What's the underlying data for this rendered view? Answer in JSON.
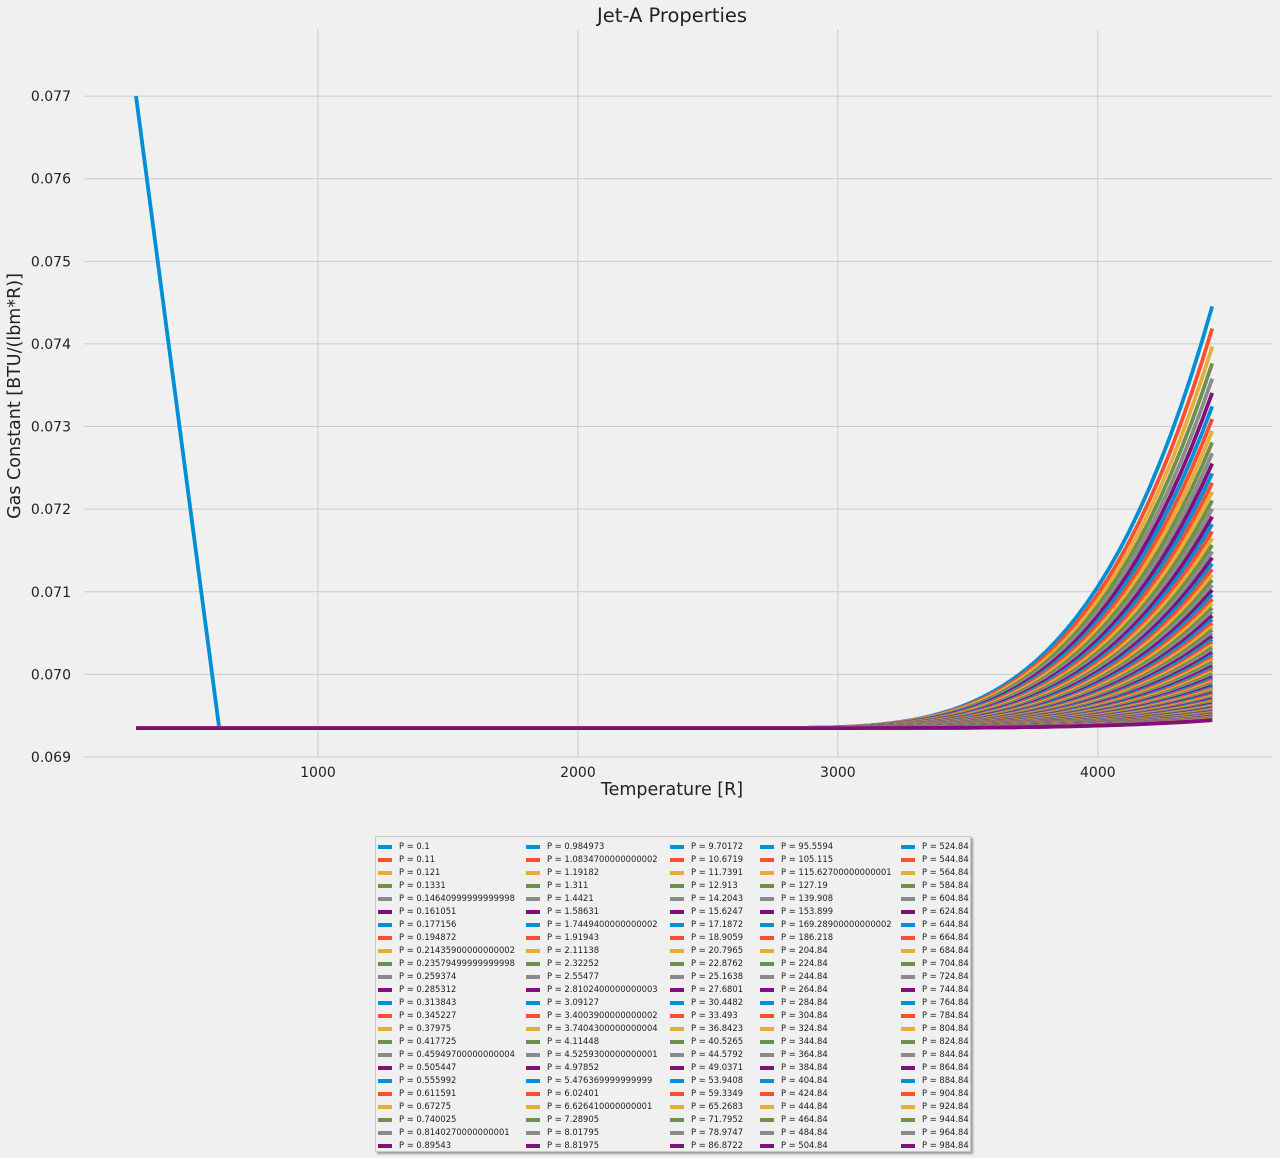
{
  "chart_data": {
    "type": "line",
    "title": "Jet-A Properties",
    "xlabel": "Temperature [R]",
    "ylabel": "Gas Constant [BTU/(lbm*R)]",
    "xlim": [
      100,
      4670
    ],
    "ylim": [
      0.069,
      0.0778
    ],
    "x_ticks": [
      1000,
      2000,
      3000,
      4000
    ],
    "y_ticks": [
      0.069,
      0.07,
      0.071,
      0.072,
      0.073,
      0.074,
      0.075,
      0.076,
      0.077
    ],
    "x_tick_labels": [
      "1000",
      "2000",
      "3000",
      "4000"
    ],
    "y_tick_labels": [
      "0.069",
      "0.070",
      "0.071",
      "0.072",
      "0.073",
      "0.074",
      "0.075",
      "0.076",
      "0.077"
    ],
    "t_start": 300,
    "t_end": 4460,
    "r_base": 0.06935,
    "first_series_spike": {
      "x": [
        300,
        620
      ],
      "y": [
        0.077,
        0.06935
      ]
    },
    "top_curve_end_value": 0.07468,
    "bottom_curve_end_value": 0.06945,
    "legend_location": "below plot, centered",
    "color_cycle": [
      "#008fd5",
      "#fc4f30",
      "#e5ae38",
      "#6d904f",
      "#8b8b8b",
      "#810f7c"
    ],
    "legend_labels": [
      "P = 0.1",
      "P = 0.11",
      "P = 0.121",
      "P = 0.1331",
      "P = 0.14640999999999998",
      "P = 0.161051",
      "P = 0.177156",
      "P = 0.194872",
      "P = 0.21435900000000002",
      "P = 0.23579499999999998",
      "P = 0.259374",
      "P = 0.285312",
      "P = 0.313843",
      "P = 0.345227",
      "P = 0.37975",
      "P = 0.417725",
      "P = 0.45949700000000004",
      "P = 0.505447",
      "P = 0.555992",
      "P = 0.611591",
      "P = 0.67275",
      "P = 0.740025",
      "P = 0.8140270000000001",
      "P = 0.89543",
      "P = 0.984973",
      "P = 1.0834700000000002",
      "P = 1.19182",
      "P = 1.311",
      "P = 1.4421",
      "P = 1.58631",
      "P = 1.7449400000000002",
      "P = 1.91943",
      "P = 2.11138",
      "P = 2.32252",
      "P = 2.55477",
      "P = 2.8102400000000003",
      "P = 3.09127",
      "P = 3.4003900000000002",
      "P = 3.7404300000000004",
      "P = 4.11448",
      "P = 4.5259300000000001",
      "P = 4.97852",
      "P = 5.476369999999999",
      "P = 6.02401",
      "P = 6.626410000000001",
      "P = 7.28905",
      "P = 8.01795",
      "P = 8.81975",
      "P = 9.70172",
      "P = 10.6719",
      "P = 11.7391",
      "P = 12.913",
      "P = 14.2043",
      "P = 15.6247",
      "P = 17.1872",
      "P = 18.9059",
      "P = 20.7965",
      "P = 22.8762",
      "P = 25.1638",
      "P = 27.6801",
      "P = 30.4482",
      "P = 33.493",
      "P = 36.8423",
      "P = 40.5265",
      "P = 44.5792",
      "P = 49.0371",
      "P = 53.9408",
      "P = 59.3349",
      "P = 65.2683",
      "P = 71.7952",
      "P = 78.9747",
      "P = 86.8722",
      "P = 95.5594",
      "P = 105.115",
      "P = 115.62700000000001",
      "P = 127.19",
      "P = 139.908",
      "P = 153.899",
      "P = 169.28900000000002",
      "P = 186.218",
      "P = 204.84",
      "P = 224.84",
      "P = 244.84",
      "P = 264.84",
      "P = 284.84",
      "P = 304.84",
      "P = 324.84",
      "P = 344.84",
      "P = 364.84",
      "P = 384.84",
      "P = 404.84",
      "P = 424.84",
      "P = 444.84",
      "P = 464.84",
      "P = 484.84",
      "P = 504.84",
      "P = 524.84",
      "P = 544.84",
      "P = 564.84",
      "P = 584.84",
      "P = 604.84",
      "P = 624.84",
      "P = 644.84",
      "P = 664.84",
      "P = 684.84",
      "P = 704.84",
      "P = 724.84",
      "P = 744.84",
      "P = 764.84",
      "P = 784.84",
      "P = 804.84",
      "P = 824.84",
      "P = 844.84",
      "P = 864.84",
      "P = 884.84",
      "P = 904.84",
      "P = 924.84",
      "P = 944.84",
      "P = 964.84",
      "P = 984.84"
    ]
  }
}
